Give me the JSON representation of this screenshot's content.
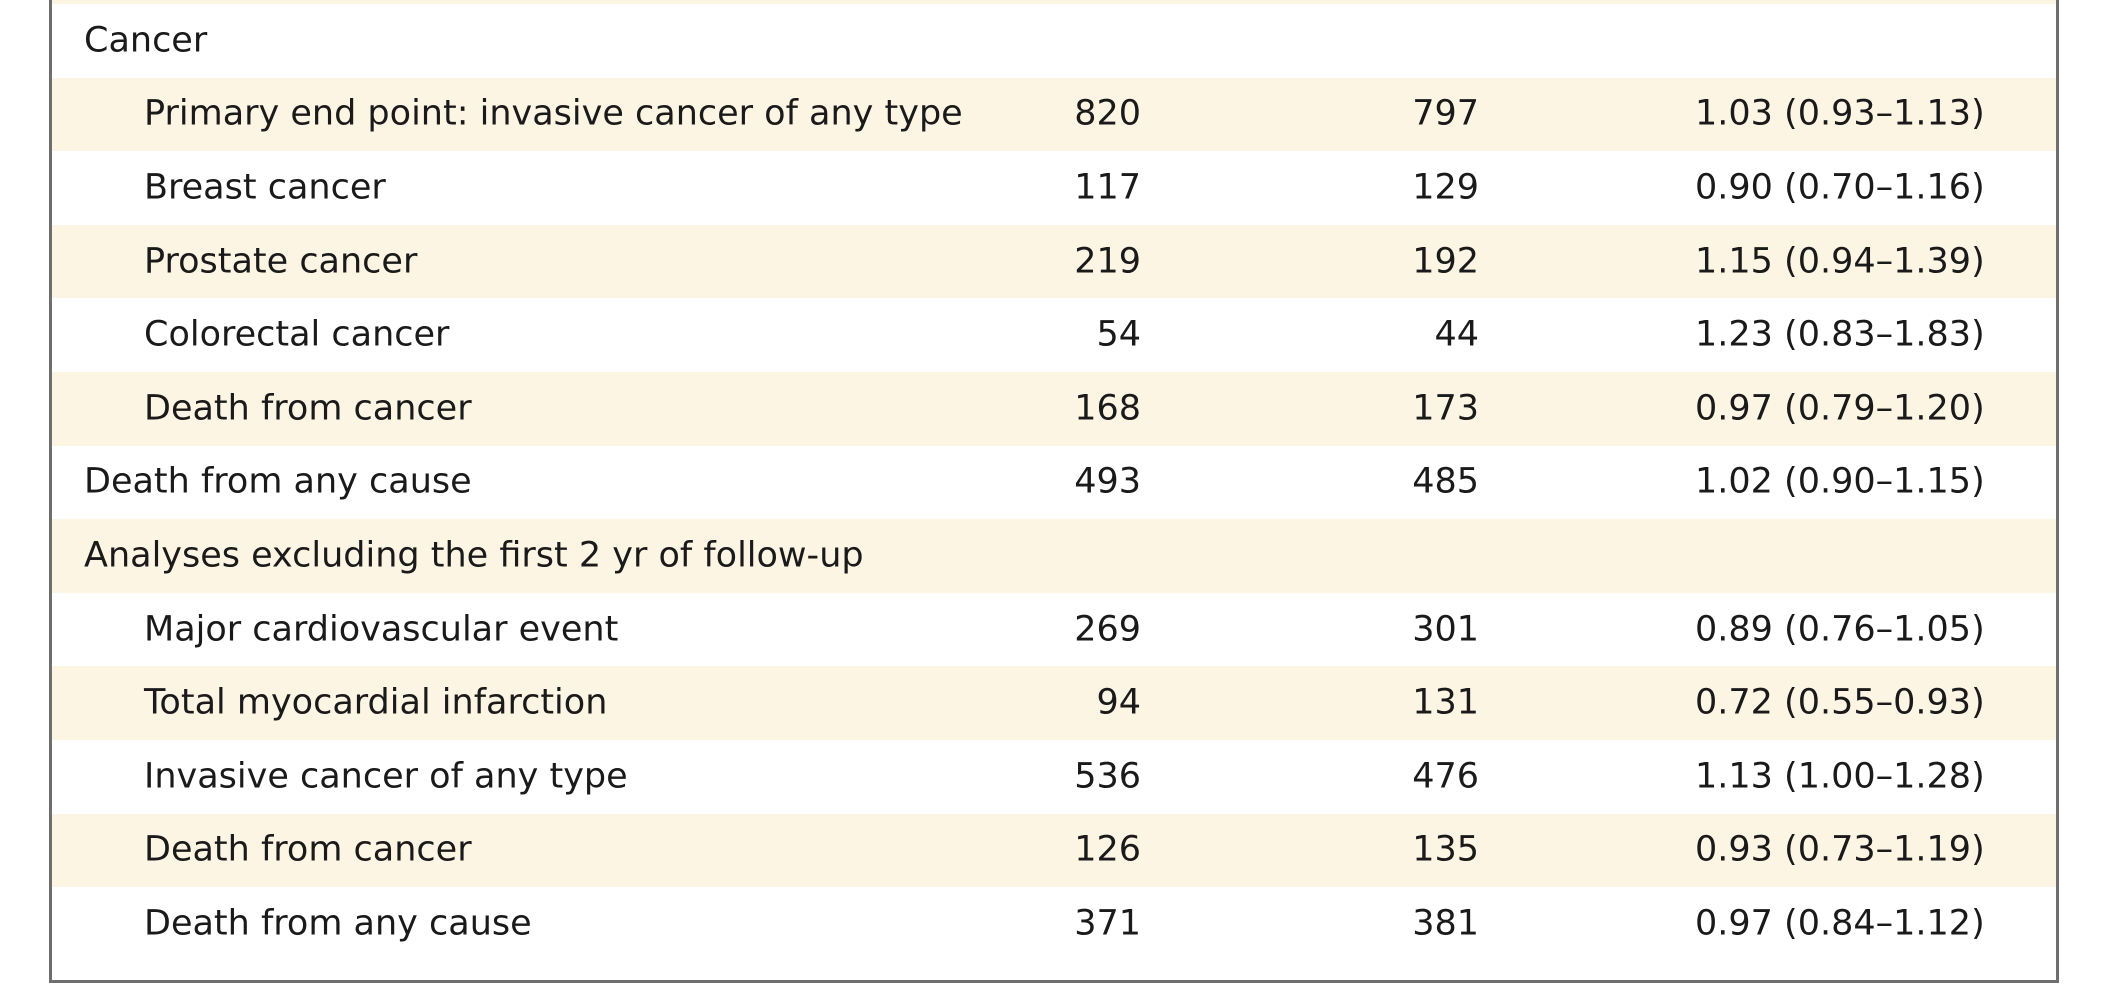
{
  "table": {
    "rows": [
      {
        "label": "Cancer",
        "indent": false,
        "shaded": false,
        "col1": "",
        "col2": "",
        "hr": ""
      },
      {
        "label": "Primary end point: invasive cancer of any type",
        "indent": true,
        "shaded": true,
        "col1": "820",
        "col2": "797",
        "hr": "1.03 (0.93–1.13)"
      },
      {
        "label": "Breast cancer",
        "indent": true,
        "shaded": false,
        "col1": "117",
        "col2": "129",
        "hr": "0.90 (0.70–1.16)"
      },
      {
        "label": "Prostate cancer",
        "indent": true,
        "shaded": true,
        "col1": "219",
        "col2": "192",
        "hr": "1.15 (0.94–1.39)"
      },
      {
        "label": "Colorectal cancer",
        "indent": true,
        "shaded": false,
        "col1": "54",
        "col2": "44",
        "hr": "1.23 (0.83–1.83)"
      },
      {
        "label": "Death from cancer",
        "indent": true,
        "shaded": true,
        "col1": "168",
        "col2": "173",
        "hr": "0.97 (0.79–1.20)"
      },
      {
        "label": "Death from any cause",
        "indent": false,
        "shaded": false,
        "col1": "493",
        "col2": "485",
        "hr": "1.02 (0.90–1.15)"
      },
      {
        "label": "Analyses excluding the first 2 yr of follow-up",
        "indent": false,
        "shaded": true,
        "col1": "",
        "col2": "",
        "hr": ""
      },
      {
        "label": "Major cardiovascular event",
        "indent": true,
        "shaded": false,
        "col1": "269",
        "col2": "301",
        "hr": "0.89 (0.76–1.05)"
      },
      {
        "label": "Total myocardial infarction",
        "indent": true,
        "shaded": true,
        "col1": "94",
        "col2": "131",
        "hr": "0.72 (0.55–0.93)"
      },
      {
        "label": "Invasive cancer of any type",
        "indent": true,
        "shaded": false,
        "col1": "536",
        "col2": "476",
        "hr": "1.13 (1.00–1.28)"
      },
      {
        "label": "Death from cancer",
        "indent": true,
        "shaded": true,
        "col1": "126",
        "col2": "135",
        "hr": "0.93 (0.73–1.19)"
      },
      {
        "label": "Death from any cause",
        "indent": true,
        "shaded": false,
        "col1": "371",
        "col2": "381",
        "hr": "0.97 (0.84–1.12)"
      }
    ]
  },
  "colors": {
    "row_shade": "#fdf5e4",
    "border": "#6e6e6e",
    "text": "#1a1a1a"
  }
}
